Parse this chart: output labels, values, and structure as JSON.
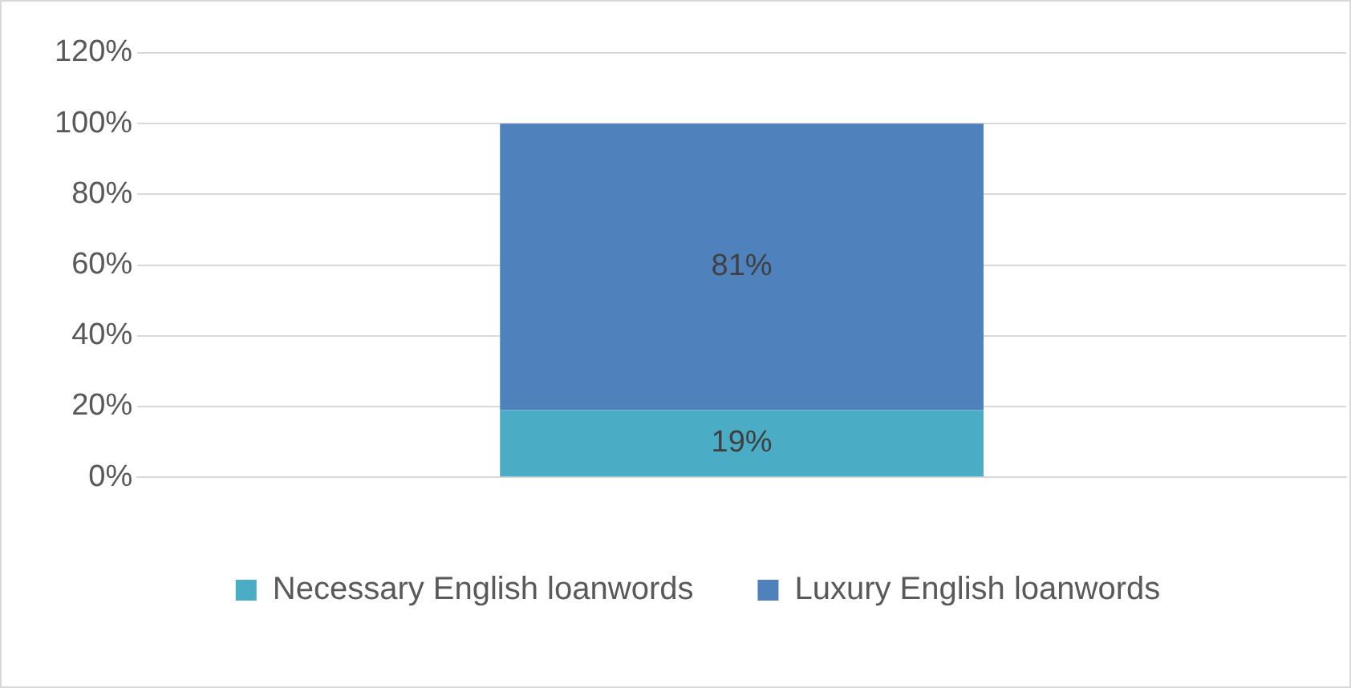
{
  "chart_data": {
    "type": "bar",
    "stacked": true,
    "categories": [
      null
    ],
    "series": [
      {
        "name": "Necessary English loanwords",
        "color": "#4bacc6",
        "values": [
          19
        ],
        "value_labels": [
          "19%"
        ]
      },
      {
        "name": "Luxury English loanwords",
        "color": "#4f81bd",
        "values": [
          81
        ],
        "value_labels": [
          "81%"
        ]
      }
    ],
    "ylim": [
      0,
      120
    ],
    "yticks": [
      {
        "value": 0,
        "label": "0%"
      },
      {
        "value": 20,
        "label": "20%"
      },
      {
        "value": 40,
        "label": "40%"
      },
      {
        "value": 60,
        "label": "60%"
      },
      {
        "value": 80,
        "label": "80%"
      },
      {
        "value": 100,
        "label": "100%"
      },
      {
        "value": 120,
        "label": "120%"
      }
    ],
    "grid": "y",
    "legend": "bottom"
  }
}
